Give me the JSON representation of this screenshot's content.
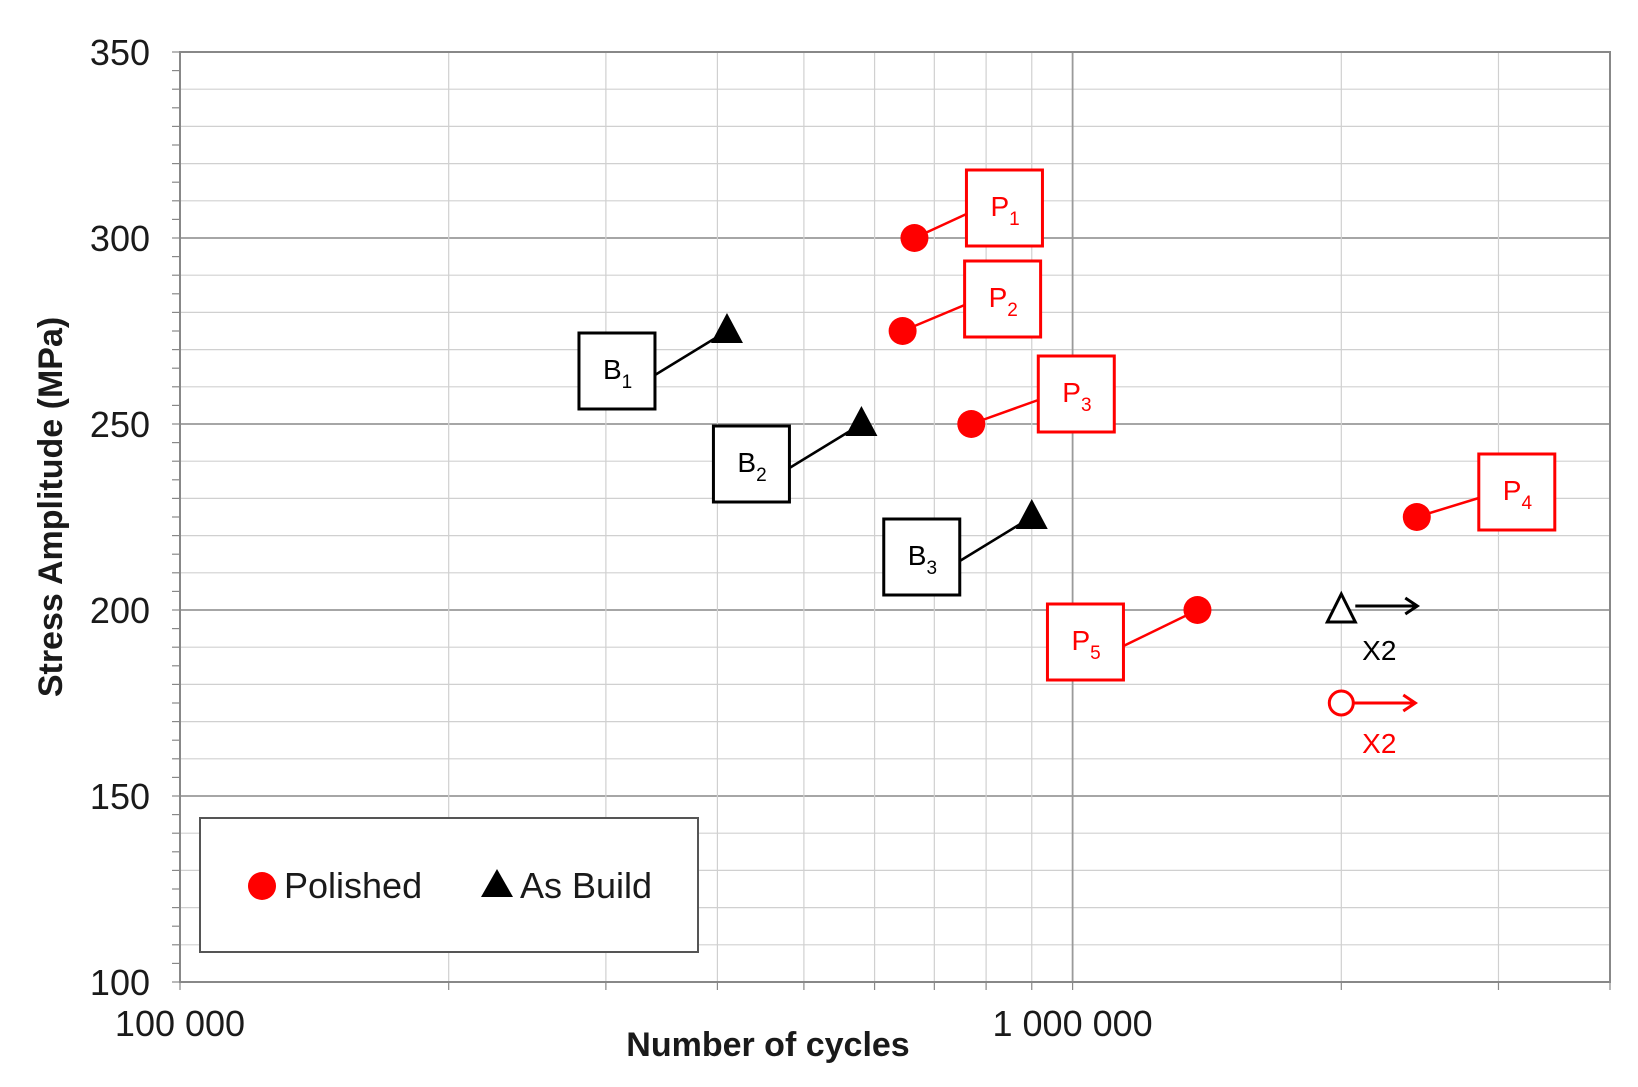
{
  "chart_data": {
    "type": "scatter",
    "xlabel": "Number of cycles",
    "ylabel": "Stress Amplitude (MPa)",
    "x_scale": "log",
    "xlim": [
      100000,
      4000000
    ],
    "ylim": [
      100,
      350
    ],
    "x_tick_labels": [
      {
        "value": 100000,
        "label": "100 000"
      },
      {
        "value": 1000000,
        "label": "1 000 000"
      }
    ],
    "y_ticks": [
      100,
      150,
      200,
      250,
      300,
      350
    ],
    "y_tick_labels": [
      "100",
      "150",
      "200",
      "250",
      "300",
      "350"
    ],
    "grid": true,
    "legend_position": "bottom-left",
    "colors": {
      "polished": "#ff0000",
      "as_build": "#000000"
    },
    "series": [
      {
        "name": "Polished",
        "marker": "circle",
        "color": "#ff0000",
        "points": [
          {
            "label": "P",
            "sub": "1",
            "x": 665000,
            "y": 300
          },
          {
            "label": "P",
            "sub": "2",
            "x": 645000,
            "y": 275
          },
          {
            "label": "P",
            "sub": "3",
            "x": 770000,
            "y": 250
          },
          {
            "label": "P",
            "sub": "4",
            "x": 2430000,
            "y": 225
          },
          {
            "label": "P",
            "sub": "5",
            "x": 1380000,
            "y": 200
          }
        ]
      },
      {
        "name": "As Build",
        "marker": "triangle",
        "color": "#000000",
        "points": [
          {
            "label": "B",
            "sub": "1",
            "x": 410000,
            "y": 275
          },
          {
            "label": "B",
            "sub": "2",
            "x": 580000,
            "y": 250
          },
          {
            "label": "B",
            "sub": "3",
            "x": 900000,
            "y": 225
          }
        ]
      }
    ],
    "runouts": [
      {
        "series": "As Build",
        "marker": "triangle-open",
        "x": 2000000,
        "y": 200,
        "label": "X2",
        "color": "#000000"
      },
      {
        "series": "Polished",
        "marker": "circle-open",
        "x": 2000000,
        "y": 175,
        "label": "X2",
        "color": "#ff0000"
      }
    ]
  }
}
